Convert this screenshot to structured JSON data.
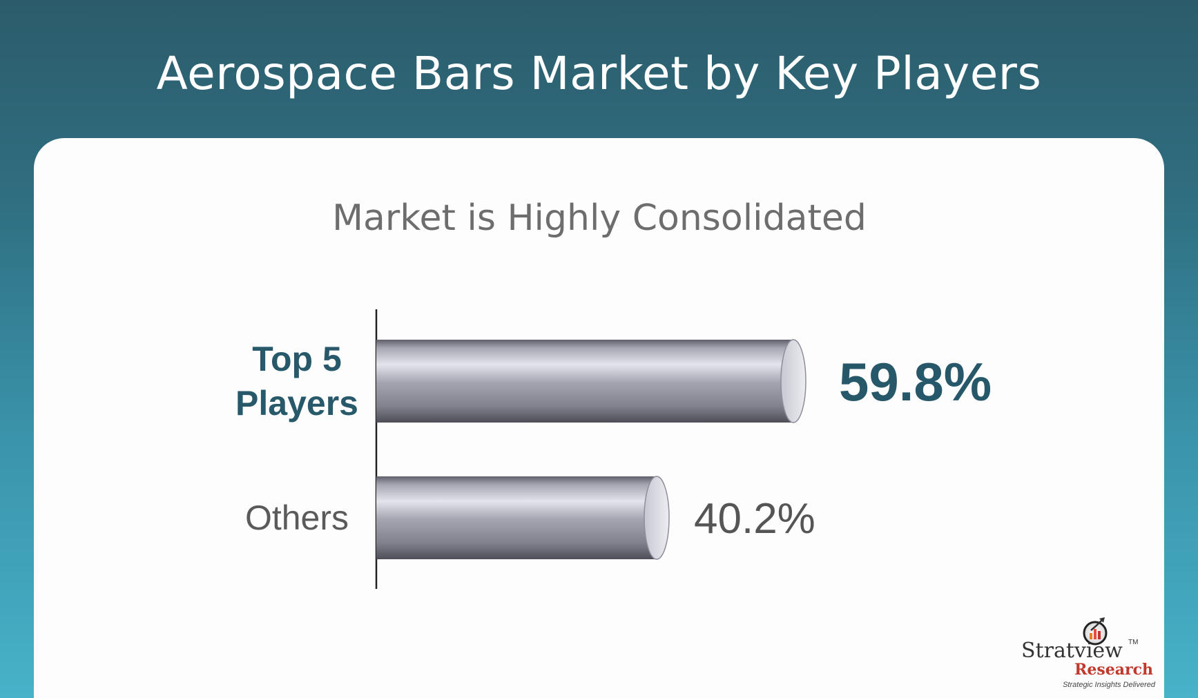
{
  "header": {
    "title": "Aerospace Bars Market by Key Players"
  },
  "chart_data": {
    "type": "bar",
    "orientation": "horizontal",
    "title": "Market is Highly Consolidated",
    "categories": [
      "Top 5 Players",
      "Others"
    ],
    "category_lines": [
      [
        "Top 5",
        "Players"
      ],
      [
        "Others"
      ]
    ],
    "values": [
      59.8,
      40.2
    ],
    "value_labels": [
      "59.8%",
      "40.2%"
    ],
    "unit": "%",
    "xlim": [
      0,
      100
    ],
    "grid": false,
    "legend": "none",
    "colors": {
      "bar": "#9a9aa6",
      "highlight_label": "#27596a",
      "other_label": "#5a5a5a"
    }
  },
  "brand": {
    "name": "Stratview",
    "trademark": "TM",
    "sub": "Research",
    "tagline": "Strategic Insights Delivered"
  },
  "colors": {
    "background_top": "#2c5c6b",
    "background_bottom": "#47b2c9",
    "card": "#fdfdfd"
  }
}
